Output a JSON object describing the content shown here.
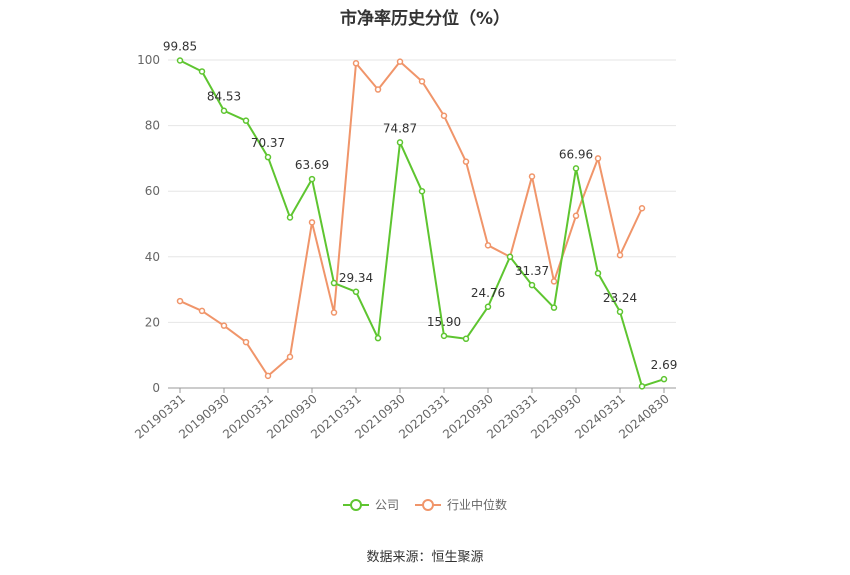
{
  "chart_data": {
    "type": "line",
    "title": "市净率历史分位（%）",
    "source": "数据来源：恒生聚源",
    "ylim": [
      0,
      100
    ],
    "yticks": [
      "0",
      "20",
      "40",
      "60",
      "80",
      "100"
    ],
    "grid": true,
    "legend_position": "bottom",
    "x_tick_labels": [
      "20190331",
      "20190930",
      "20200331",
      "20200930",
      "20210331",
      "20210930",
      "20220331",
      "20220930",
      "20230331",
      "20230930",
      "20240331",
      "20240830"
    ],
    "x_tick_positions": [
      0,
      2,
      4,
      6,
      8,
      10,
      12,
      14,
      16,
      18,
      20,
      22
    ],
    "series": [
      {
        "name": "公司",
        "color": "#5ec530",
        "values": [
          99.85,
          96.5,
          84.53,
          81.5,
          70.37,
          52.0,
          63.69,
          32.0,
          29.34,
          15.2,
          74.87,
          60.0,
          15.9,
          15.0,
          24.76,
          40.0,
          31.37,
          24.5,
          66.96,
          35.0,
          23.24,
          0.5,
          2.69
        ],
        "labels": [
          "99.85",
          "",
          "84.53",
          "",
          "70.37",
          "",
          "63.69",
          "",
          "29.34",
          "",
          "74.87",
          "",
          "15.90",
          "",
          "24.76",
          "",
          "31.37",
          "",
          "66.96",
          "",
          "23.24",
          "",
          "2.69"
        ]
      },
      {
        "name": "行业中位数",
        "color": "#f0956a",
        "values": [
          26.5,
          23.5,
          19.0,
          14.0,
          3.7,
          9.5,
          50.5,
          23.0,
          99.0,
          91.0,
          99.5,
          93.5,
          83.0,
          69.0,
          43.5,
          40.0,
          64.5,
          32.5,
          52.5,
          70.0,
          40.5,
          54.8,
          null
        ]
      }
    ]
  }
}
